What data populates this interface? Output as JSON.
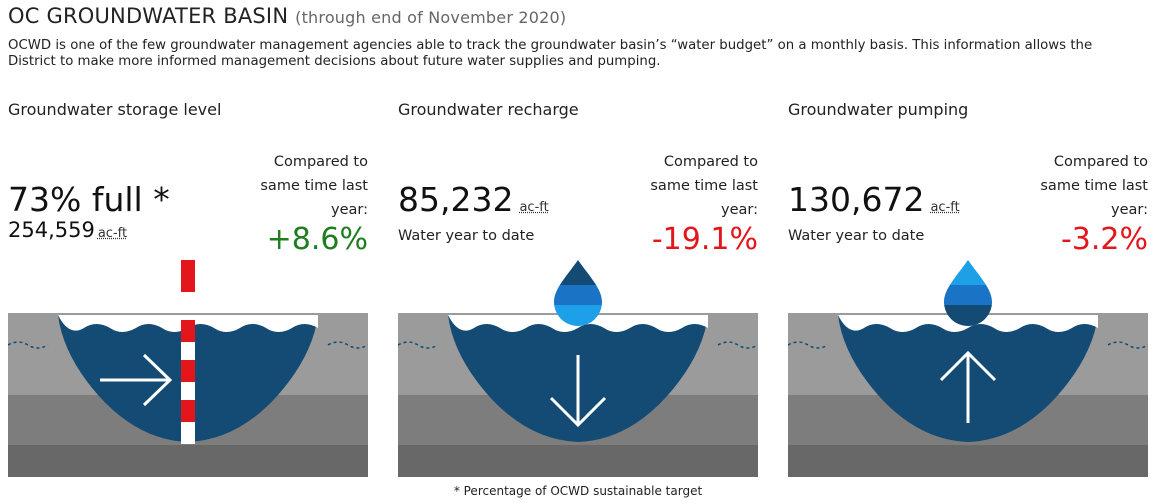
{
  "header": {
    "title": "OC GROUNDWATER BASIN",
    "subtitle_open": "(",
    "subtitle": "through end of November 2020",
    "subtitle_close": ")",
    "intro": "OCWD is one of the few groundwater management agencies able to track the groundwater basin’s “water budget” on a monthly basis. This information allows the District to make more informed management decisions about future water supplies and pumping."
  },
  "panels": [
    {
      "title": "Groundwater storage level",
      "compared_line1": "Compared to",
      "compared_line2": "same time last",
      "compared_line3": "year:",
      "change": "+8.6%",
      "value": "73% full *",
      "value2": "254,559",
      "unit": "ac-ft",
      "icon": "horizontal-arrow-with-level-gauge"
    },
    {
      "title": "Groundwater recharge",
      "compared_line1": "Compared to",
      "compared_line2": "same time last",
      "compared_line3": "year:",
      "change": "-19.1%",
      "value": "85,232",
      "unit": "ac-ft",
      "caption": "Water year to date",
      "icon": "down-arrow-with-water-drop"
    },
    {
      "title": "Groundwater pumping",
      "compared_line1": "Compared to",
      "compared_line2": "same time last",
      "compared_line3": "year:",
      "change": "-3.2%",
      "value": "130,672",
      "unit": "ac-ft",
      "caption": "Water year to date",
      "icon": "up-arrow-with-water-drop"
    }
  ],
  "footnote": "* Percentage of OCWD sustainable target",
  "colors": {
    "water": "#134b74",
    "ground_light": "#9b9b9b",
    "ground_mid": "#7d7d7d",
    "ground_dark": "#686868",
    "positive": "#1e7d1e",
    "negative": "#e3161b",
    "gauge_red": "#e3161b",
    "drop_dark": "#134b74",
    "drop_mid": "#1a73c4",
    "drop_light": "#1ea0e8"
  }
}
